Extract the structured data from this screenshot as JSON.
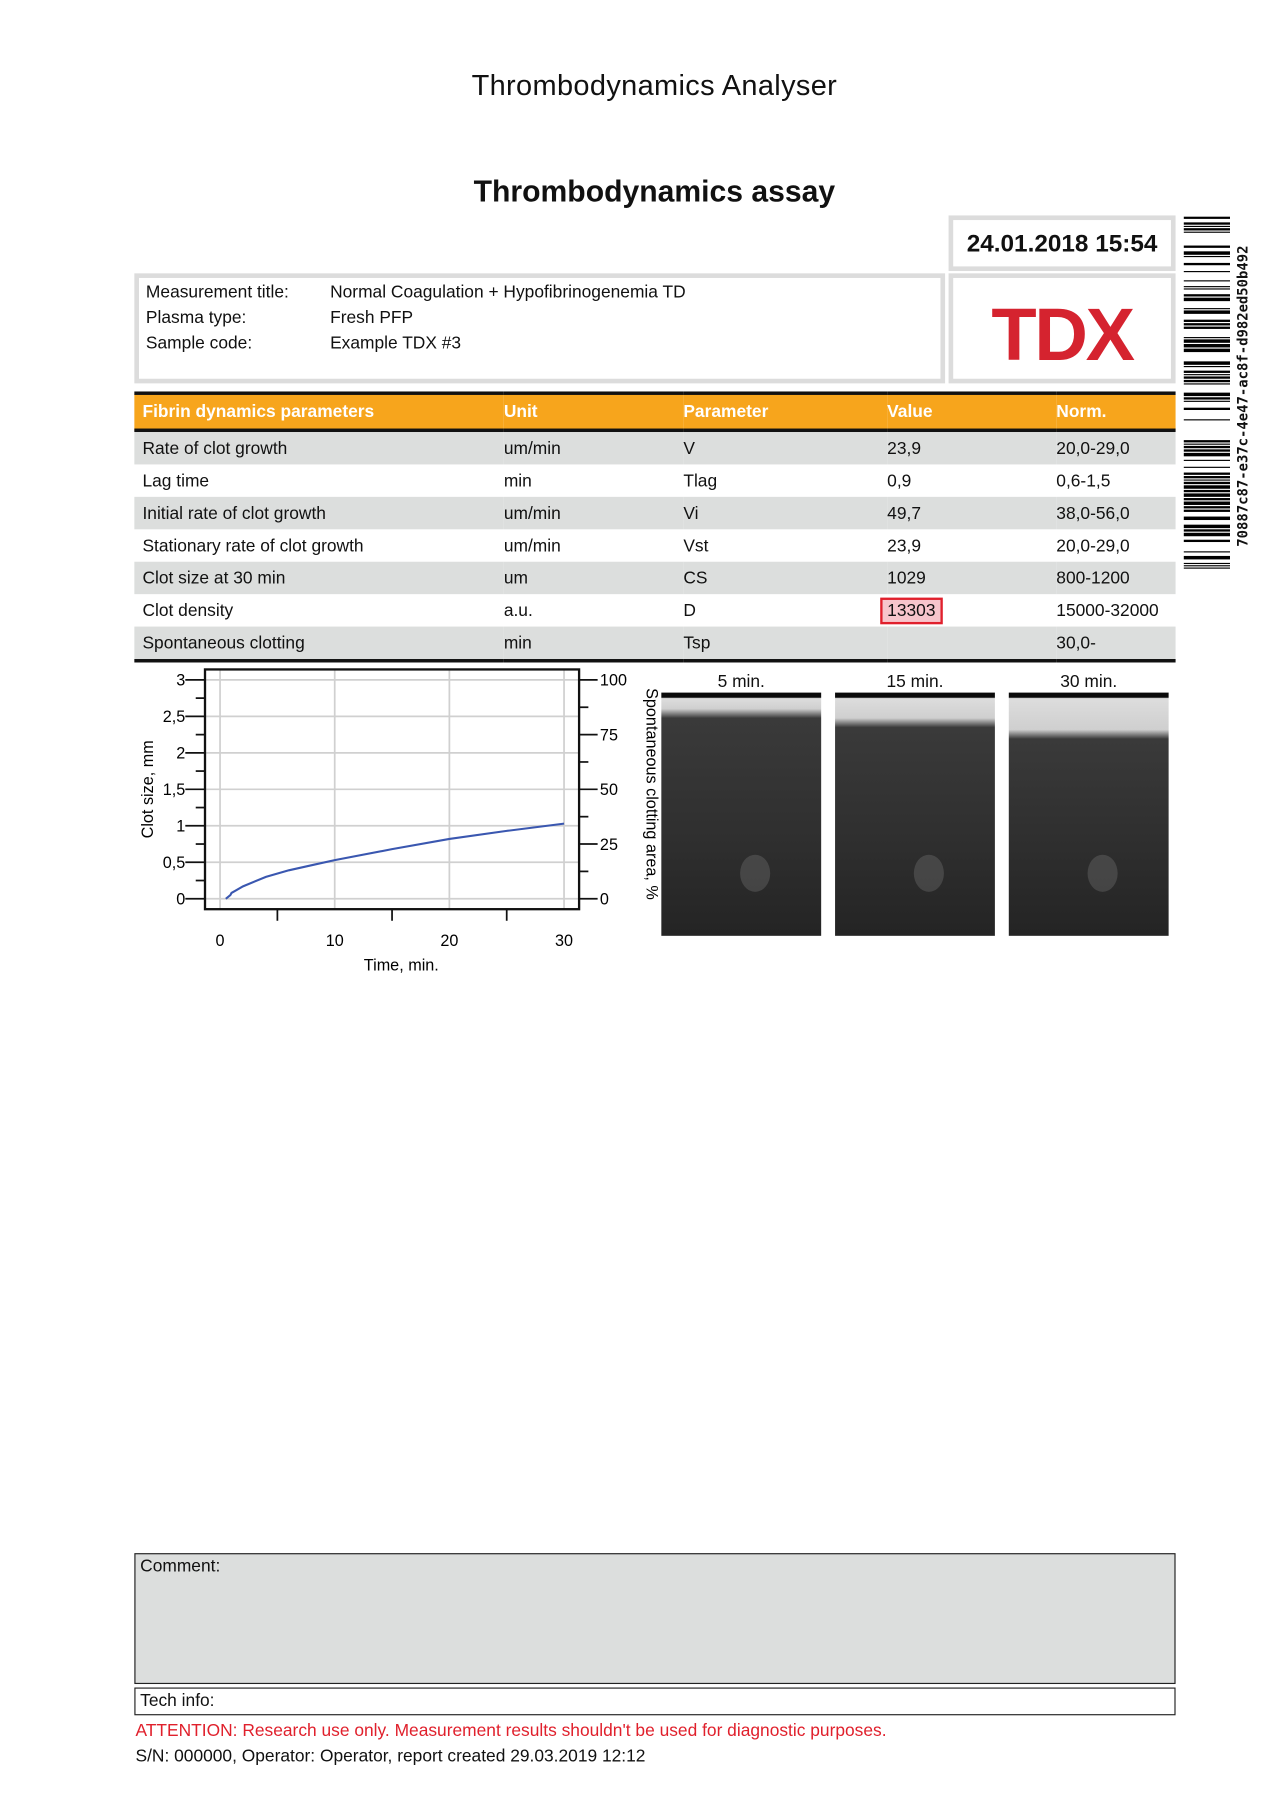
{
  "header": {
    "app_title": "Thrombodynamics Analyser",
    "report_title": "Thrombodynamics assay",
    "datetime": "24.01.2018 15:54",
    "logo_text": "TDX",
    "barcode_text": "70887c87-e37c-4e47-ac8f-d982ed50b492"
  },
  "info": {
    "rows": [
      {
        "label": "Measurement title:",
        "value": "Normal Coagulation + Hypofibrinogenemia TD"
      },
      {
        "label": "Plasma type:",
        "value": "Fresh PFP"
      },
      {
        "label": "Sample code:",
        "value": "Example TDX #3"
      }
    ]
  },
  "table": {
    "headers": [
      "Fibrin dynamics parameters",
      "Unit",
      "Parameter",
      "Value",
      "Norm."
    ],
    "header_color": "#f7a51c",
    "rows": [
      [
        "Rate of clot growth",
        "um/min",
        "V",
        "23,9",
        "20,0-29,0"
      ],
      [
        "Lag time",
        "min",
        "Tlag",
        "0,9",
        "0,6-1,5"
      ],
      [
        "Initial rate of clot growth",
        "um/min",
        "Vi",
        "49,7",
        "38,0-56,0"
      ],
      [
        "Stationary rate of clot growth",
        "um/min",
        "Vst",
        "23,9",
        "20,0-29,0"
      ],
      [
        "Clot size at 30 min",
        "um",
        "CS",
        "1029",
        "800-1200"
      ],
      [
        "Clot density",
        "a.u.",
        "D",
        "13303",
        "15000-32000"
      ],
      [
        "Spontaneous clotting",
        "min",
        "Tsp",
        "",
        "30,0-"
      ]
    ],
    "out_of_range_row": 5,
    "out_of_range_color": "#e0202c"
  },
  "chart_data": {
    "type": "line",
    "xlabel": "Time, min.",
    "ylabel": "Clot size, mm",
    "y2label": "Spontaneous clotting area, %",
    "xlim": [
      0,
      30
    ],
    "ylim": [
      0,
      3
    ],
    "y2lim": [
      0,
      100
    ],
    "xticks": [
      "0",
      "10",
      "20",
      "30"
    ],
    "yticks": [
      "0",
      "0,5",
      "1",
      "1,5",
      "2",
      "2,5",
      "3"
    ],
    "y2ticks": [
      "0",
      "25",
      "50",
      "75",
      "100"
    ],
    "grid": true,
    "series": [
      {
        "color": "#3a57b0",
        "x": [
          0.5,
          0.9,
          1,
          2,
          4,
          6,
          8,
          10,
          15,
          20,
          25,
          30
        ],
        "y": [
          0,
          0.05,
          0.08,
          0.17,
          0.3,
          0.39,
          0.46,
          0.53,
          0.68,
          0.82,
          0.93,
          1.03
        ]
      }
    ]
  },
  "images": [
    {
      "label": "5 min."
    },
    {
      "label": "15 min."
    },
    {
      "label": "30 min."
    }
  ],
  "footer": {
    "comment_label": "Comment:",
    "tech_label": "Tech info:",
    "attention": "ATTENTION: Research use only. Measurement results shouldn't be used for diagnostic purposes.",
    "sn": "S/N: 000000, Operator: Operator, report created 29.03.2019 12:12"
  }
}
